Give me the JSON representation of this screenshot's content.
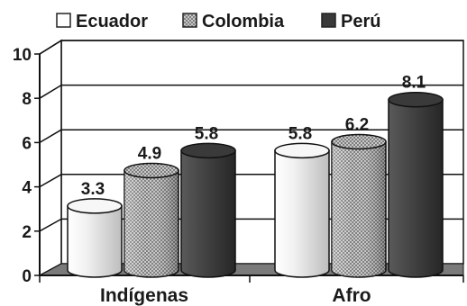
{
  "chart_data": {
    "type": "bar",
    "categories": [
      "Indígenas",
      "Afro"
    ],
    "series": [
      {
        "name": "Ecuador",
        "values": [
          3.3,
          5.8
        ],
        "color": "#e2e2e2",
        "pattern": "solid"
      },
      {
        "name": "Colombia",
        "values": [
          4.9,
          6.2
        ],
        "color": "#9a9a9a",
        "pattern": "dots"
      },
      {
        "name": "Perú",
        "values": [
          5.8,
          8.1
        ],
        "color": "#444444",
        "pattern": "solid"
      }
    ],
    "yticks": [
      "0",
      "2",
      "4",
      "6",
      "8",
      "10"
    ],
    "ylim": [
      0,
      10
    ],
    "data_labels": [
      [
        "3.3",
        "5.8"
      ],
      [
        "4.9",
        "6.2"
      ],
      [
        "5.8",
        "8.1"
      ]
    ],
    "grid": true,
    "legend": "top",
    "style": "3d-cylinder"
  }
}
